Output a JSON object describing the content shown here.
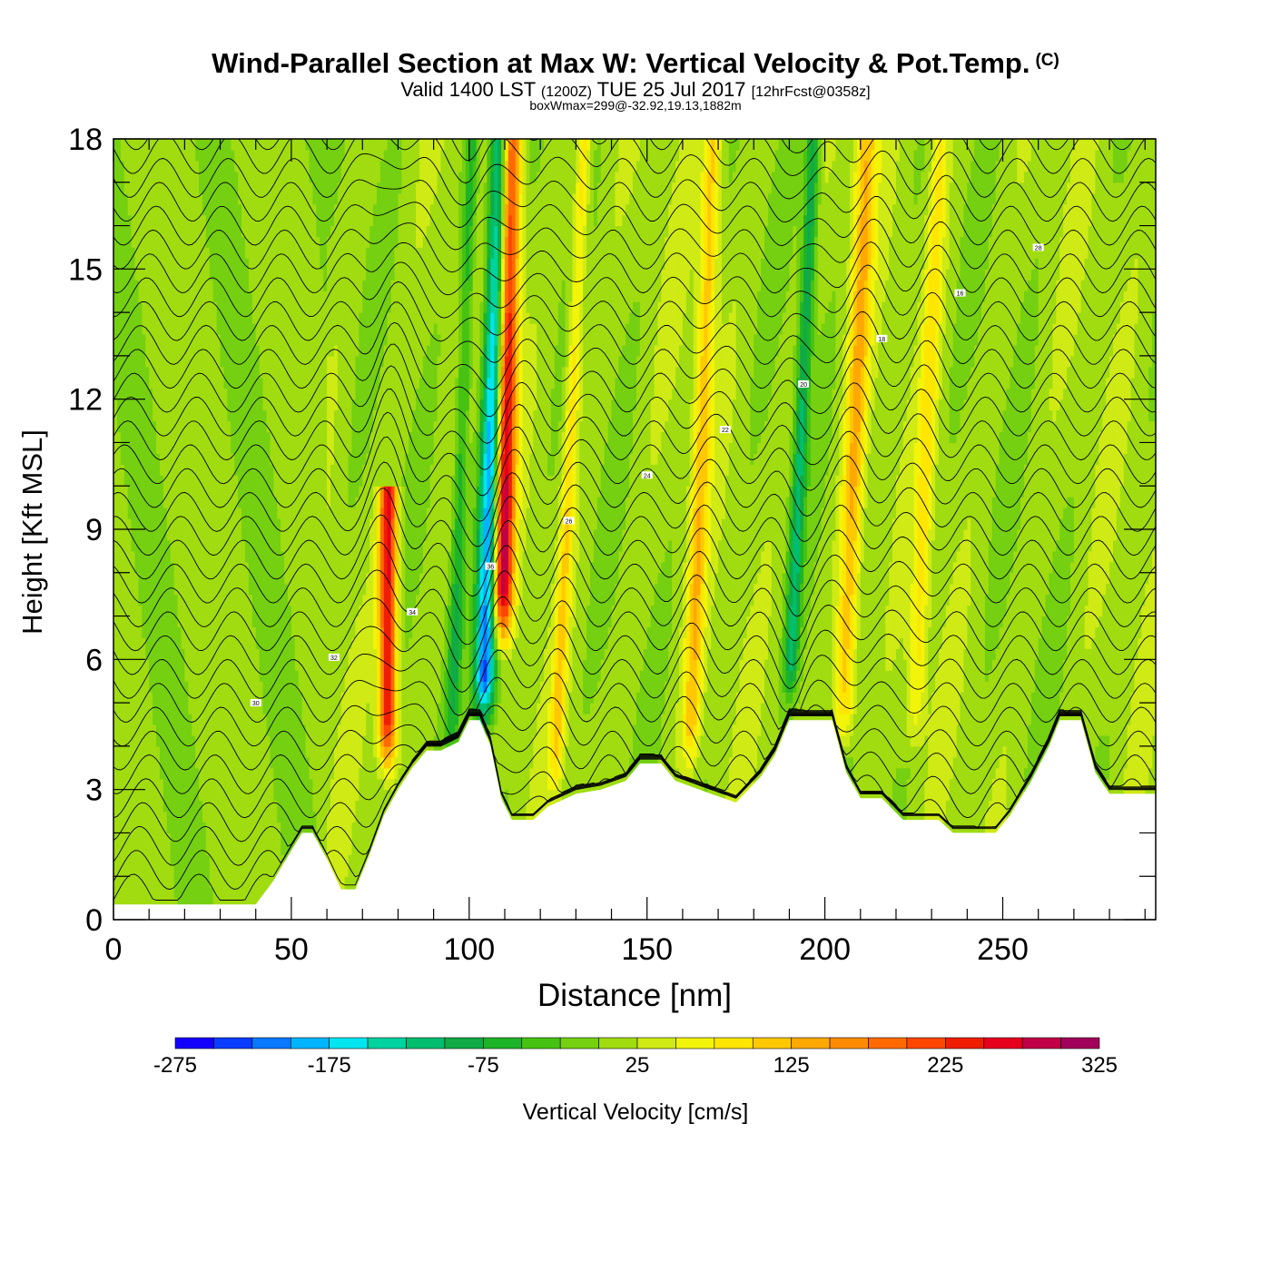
{
  "title": {
    "main": "Wind-Parallel Section at Max W: Vertical Velocity & Pot.Temp.",
    "copyright": "(C)",
    "valid_prefix": "Valid 1400 LST",
    "valid_utc": "(1200Z)",
    "valid_date": "TUE 25 Jul 2017",
    "forecast": "[12hrFcst@0358z]",
    "box_info": "boxWmax=299@-32.92,19.13,1882m"
  },
  "chart_data": {
    "type": "heatmap",
    "xlabel": "Distance [nm]",
    "ylabel": "Height [Kft MSL]",
    "xlim": [
      0,
      293
    ],
    "ylim": [
      0,
      18
    ],
    "x_ticks": [
      0,
      50,
      100,
      150,
      200,
      250
    ],
    "y_ticks": [
      0,
      3,
      6,
      9,
      12,
      15,
      18
    ],
    "colorbar": {
      "label": "Vertical Velocity [cm/s]",
      "tick_labels": [
        "-275",
        "-175",
        "-75",
        "25",
        "125",
        "225",
        "325"
      ],
      "boundaries": [
        -275,
        -250,
        -225,
        -200,
        -175,
        -150,
        -125,
        -100,
        -75,
        -50,
        -25,
        0,
        25,
        50,
        75,
        100,
        125,
        150,
        175,
        200,
        225,
        250,
        275,
        300,
        325
      ],
      "colors": [
        "#1400ff",
        "#0a3cff",
        "#0a78ff",
        "#00b4ff",
        "#00e6f0",
        "#00d2a0",
        "#00be6e",
        "#10aa46",
        "#1eb428",
        "#46c312",
        "#74d010",
        "#a0dc10",
        "#cfea14",
        "#f2f40a",
        "#ffe600",
        "#ffc800",
        "#ffa800",
        "#ff8c00",
        "#ff6a00",
        "#ff4600",
        "#f01e00",
        "#e6001e",
        "#c00046",
        "#a0005a"
      ]
    },
    "terrain_kft": [
      [
        0,
        0.35
      ],
      [
        40,
        0.35
      ],
      [
        45,
        0.9
      ],
      [
        50,
        1.6
      ],
      [
        53,
        2.0
      ],
      [
        56,
        2.0
      ],
      [
        60,
        1.4
      ],
      [
        64,
        0.7
      ],
      [
        68,
        0.7
      ],
      [
        72,
        1.5
      ],
      [
        76,
        2.4
      ],
      [
        80,
        3.0
      ],
      [
        84,
        3.5
      ],
      [
        88,
        3.9
      ],
      [
        92,
        3.9
      ],
      [
        97,
        4.1
      ],
      [
        100,
        4.6
      ],
      [
        103,
        4.6
      ],
      [
        106,
        4.0
      ],
      [
        109,
        2.8
      ],
      [
        112,
        2.3
      ],
      [
        118,
        2.3
      ],
      [
        122,
        2.6
      ],
      [
        130,
        2.9
      ],
      [
        137,
        3.0
      ],
      [
        144,
        3.2
      ],
      [
        148,
        3.6
      ],
      [
        154,
        3.6
      ],
      [
        158,
        3.2
      ],
      [
        168,
        2.9
      ],
      [
        175,
        2.7
      ],
      [
        182,
        3.3
      ],
      [
        186,
        3.8
      ],
      [
        190,
        4.6
      ],
      [
        202,
        4.6
      ],
      [
        206,
        3.4
      ],
      [
        210,
        2.8
      ],
      [
        216,
        2.8
      ],
      [
        222,
        2.3
      ],
      [
        232,
        2.3
      ],
      [
        236,
        2.0
      ],
      [
        248,
        2.0
      ],
      [
        252,
        2.4
      ],
      [
        258,
        3.2
      ],
      [
        263,
        4.0
      ],
      [
        266,
        4.6
      ],
      [
        272,
        4.6
      ],
      [
        276,
        3.4
      ],
      [
        280,
        2.9
      ],
      [
        293,
        2.9
      ]
    ],
    "features": [
      {
        "x": 104,
        "z_bottom": 4.5,
        "z_top": 18,
        "value": -250,
        "width_nm": 3,
        "tilt_nm_per_kft": 1.1
      },
      {
        "x": 109,
        "z_bottom": 6.5,
        "z_top": 18,
        "value": 295,
        "width_nm": 3,
        "tilt_nm_per_kft": 0.6
      },
      {
        "x": 77,
        "z_bottom": 3.5,
        "z_top": 9.5,
        "value": 250,
        "width_nm": 2.5,
        "tilt_nm_per_kft": 0.1
      },
      {
        "x": 124,
        "z_bottom": 3,
        "z_top": 18,
        "value": 85,
        "width_nm": 2,
        "tilt_nm_per_kft": 1.6
      },
      {
        "x": 162,
        "z_bottom": 3.5,
        "z_top": 18,
        "value": 100,
        "width_nm": 2.5,
        "tilt_nm_per_kft": 1.3
      },
      {
        "x": 205,
        "z_bottom": 4,
        "z_top": 18,
        "value": 110,
        "width_nm": 3,
        "tilt_nm_per_kft": 1.4
      },
      {
        "x": 225,
        "z_bottom": 4,
        "z_top": 18,
        "value": 70,
        "width_nm": 2.5,
        "tilt_nm_per_kft": 1.5
      },
      {
        "x": 190,
        "z_bottom": 5,
        "z_top": 18,
        "value": -110,
        "width_nm": 2,
        "tilt_nm_per_kft": 1.5
      },
      {
        "x": 95,
        "z_bottom": 4,
        "z_top": 18,
        "value": -80,
        "width_nm": 2,
        "tilt_nm_per_kft": 1.2
      }
    ],
    "theta_labels": [
      "30",
      "32",
      "34",
      "36",
      "26",
      "24",
      "22",
      "20",
      "18",
      "16",
      "28"
    ],
    "theta_isentrope_count": 34
  }
}
